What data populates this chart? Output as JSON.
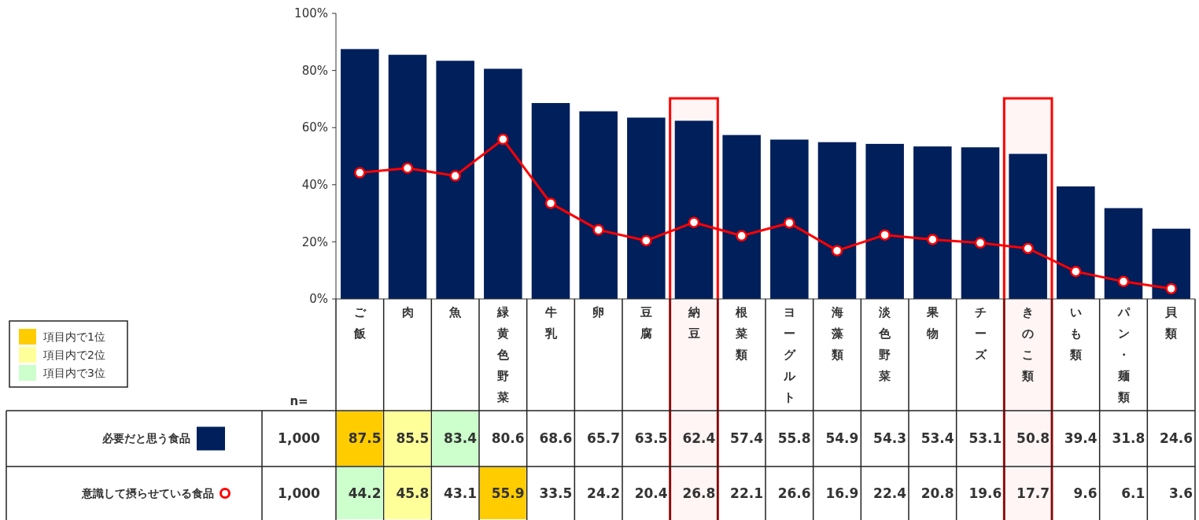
{
  "chart_data": {
    "type": "bar",
    "categories": [
      "ご飯",
      "肉",
      "魚",
      "緑黄色野菜",
      "牛乳",
      "卵",
      "豆腐",
      "納豆",
      "根菜類",
      "ヨーグルト",
      "海藻類",
      "淡色野菜",
      "果物",
      "チーズ",
      "きのこ類",
      "いも類",
      "パン・麺類",
      "貝類"
    ],
    "series": [
      {
        "name": "必要だと思う食品",
        "color": "#001f5b",
        "values": [
          87.5,
          85.5,
          83.4,
          80.6,
          68.6,
          65.7,
          63.5,
          62.4,
          57.4,
          55.8,
          54.9,
          54.3,
          53.4,
          53.1,
          50.8,
          39.4,
          31.8,
          24.6
        ]
      },
      {
        "name": "意識して摂らせている食品",
        "type": "line",
        "color": "#ff0000",
        "marker": "circle",
        "values": [
          44.2,
          45.8,
          43.1,
          55.9,
          33.5,
          24.2,
          20.4,
          26.8,
          22.1,
          26.6,
          16.9,
          22.4,
          20.8,
          19.6,
          17.7,
          9.6,
          6.1,
          3.6
        ]
      }
    ],
    "ylim": [
      0,
      100
    ],
    "yticks": [
      {
        "value": 0,
        "label": "0%"
      },
      {
        "value": 20,
        "label": "20%"
      },
      {
        "value": 40,
        "label": "40%"
      },
      {
        "value": 60,
        "label": "60%"
      },
      {
        "value": 80,
        "label": "80%"
      },
      {
        "value": 100,
        "label": "100%"
      }
    ],
    "grid": false,
    "legend": "bottom left",
    "data_labels": true,
    "annotations": [
      "項目内で1位",
      "項目内で2位",
      "項目内で3位",
      "n=",
      "1,000",
      "1,000"
    ],
    "bands": [
      {
        "axis": "x",
        "from": "納豆",
        "to": "納豆",
        "color": "#ff0000"
      },
      {
        "axis": "x",
        "from": "きのこ類",
        "to": "きのこ類",
        "color": "#ff0000"
      }
    ]
  }
}
